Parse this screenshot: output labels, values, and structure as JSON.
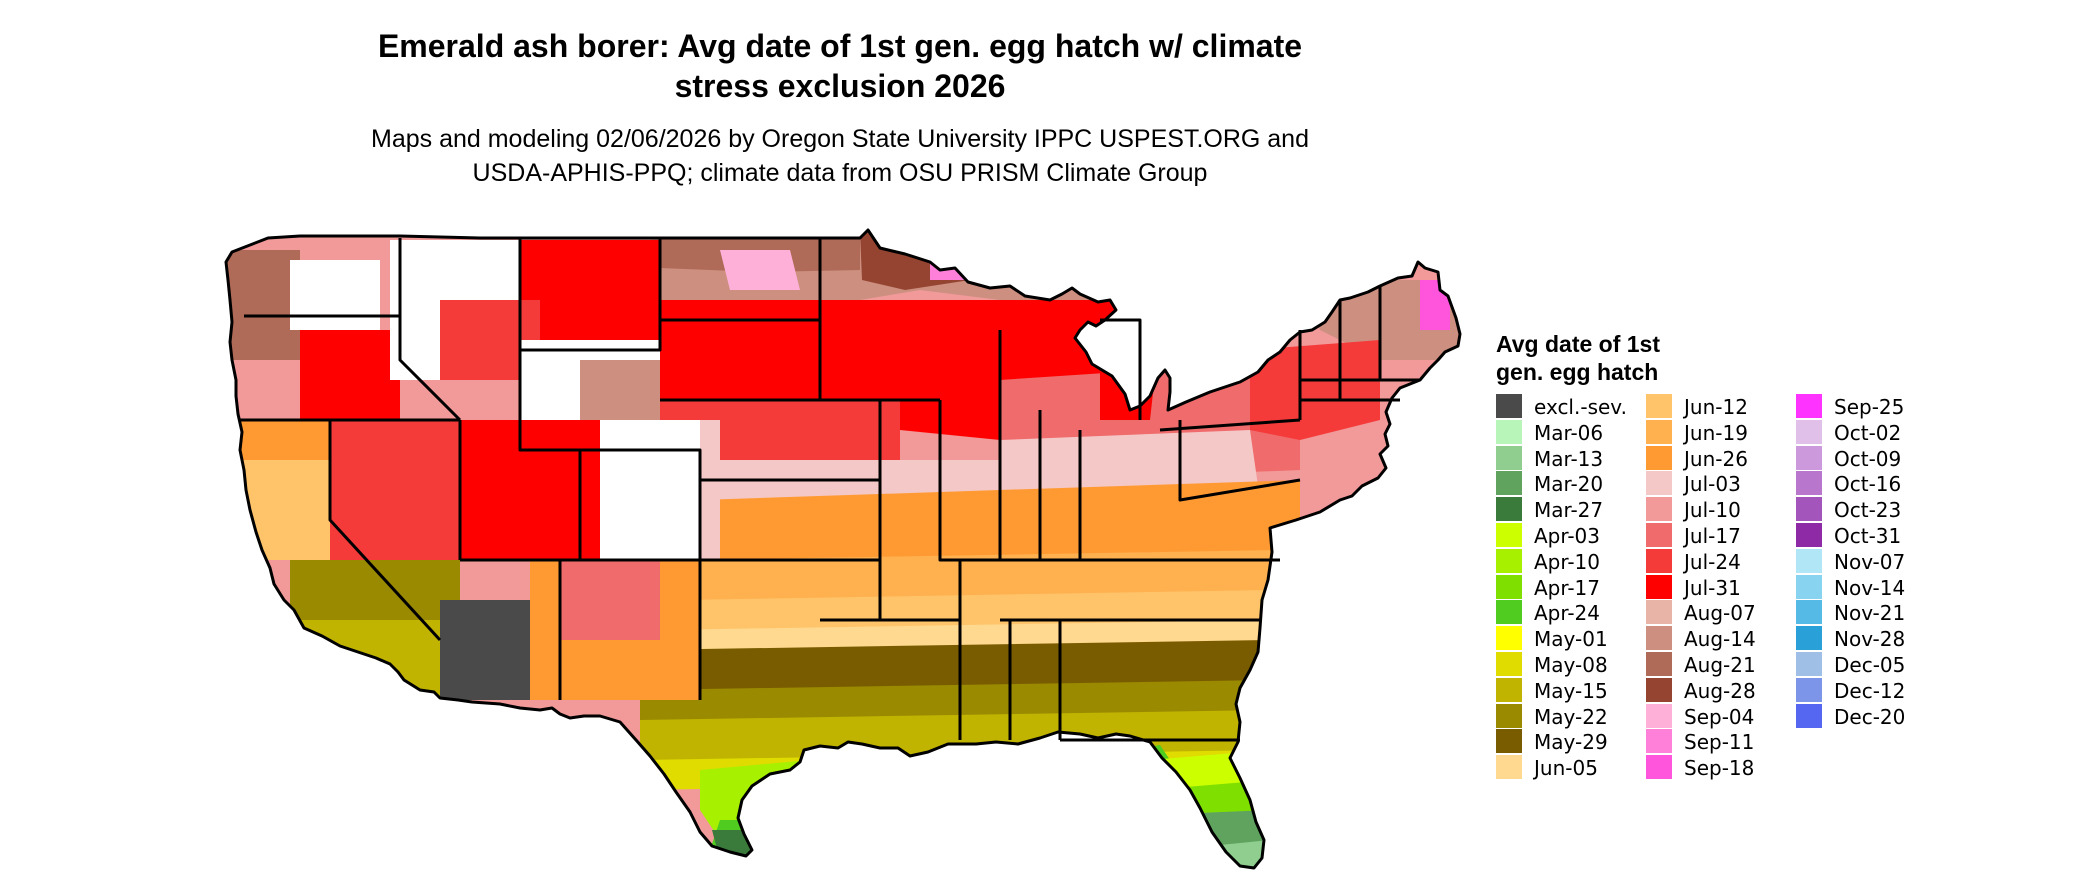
{
  "title_line1": "Emerald ash borer: Avg date of 1st gen. egg hatch w/ climate",
  "title_line2": "stress exclusion 2026",
  "subtitle_line1": "Maps and modeling 02/06/2026 by Oregon State University IPPC USPEST.ORG and",
  "subtitle_line2": "USDA-APHIS-PPQ; climate data from OSU PRISM Climate Group",
  "legend": {
    "title_line1": "Avg date of 1st",
    "title_line2": "gen. egg hatch",
    "items": [
      {
        "label": "excl.-sev.",
        "color": "#4a4a4a"
      },
      {
        "label": "Mar-06",
        "color": "#b8f5b8"
      },
      {
        "label": "Mar-13",
        "color": "#8fce8f"
      },
      {
        "label": "Mar-20",
        "color": "#5fa35f"
      },
      {
        "label": "Mar-27",
        "color": "#3a7a3a"
      },
      {
        "label": "Apr-03",
        "color": "#ccff00"
      },
      {
        "label": "Apr-10",
        "color": "#a6f000"
      },
      {
        "label": "Apr-17",
        "color": "#7fe000"
      },
      {
        "label": "Apr-24",
        "color": "#4fcc1f"
      },
      {
        "label": "May-01",
        "color": "#ffff00"
      },
      {
        "label": "May-08",
        "color": "#e0dc00"
      },
      {
        "label": "May-15",
        "color": "#c0b400"
      },
      {
        "label": "May-22",
        "color": "#9a8a00"
      },
      {
        "label": "May-29",
        "color": "#7a5c00"
      },
      {
        "label": "Jun-05",
        "color": "#ffd98f"
      },
      {
        "label": "Jun-12",
        "color": "#ffc46a"
      },
      {
        "label": "Jun-19",
        "color": "#ffb04f"
      },
      {
        "label": "Jun-26",
        "color": "#ff9a33"
      },
      {
        "label": "Jul-03",
        "color": "#f5c8c8"
      },
      {
        "label": "Jul-10",
        "color": "#f29999"
      },
      {
        "label": "Jul-17",
        "color": "#f06b6b"
      },
      {
        "label": "Jul-24",
        "color": "#f53a3a"
      },
      {
        "label": "Jul-31",
        "color": "#ff0000"
      },
      {
        "label": "Aug-07",
        "color": "#e8b4a8"
      },
      {
        "label": "Aug-14",
        "color": "#cc8f80"
      },
      {
        "label": "Aug-21",
        "color": "#b06a58"
      },
      {
        "label": "Aug-28",
        "color": "#944430"
      },
      {
        "label": "Sep-04",
        "color": "#ffb0d8"
      },
      {
        "label": "Sep-11",
        "color": "#ff80d8"
      },
      {
        "label": "Sep-18",
        "color": "#ff55dd"
      },
      {
        "label": "Sep-25",
        "color": "#ff33ff"
      },
      {
        "label": "Oct-02",
        "color": "#e0c0e8"
      },
      {
        "label": "Oct-09",
        "color": "#cc99dd"
      },
      {
        "label": "Oct-16",
        "color": "#b877cc"
      },
      {
        "label": "Oct-23",
        "color": "#a355bb"
      },
      {
        "label": "Oct-31",
        "color": "#8e2aa6"
      },
      {
        "label": "Nov-07",
        "color": "#b0e6f5"
      },
      {
        "label": "Nov-14",
        "color": "#88d4f0"
      },
      {
        "label": "Nov-21",
        "color": "#55bbe6"
      },
      {
        "label": "Nov-28",
        "color": "#2aa0d8"
      },
      {
        "label": "Dec-05",
        "color": "#a0bfe6"
      },
      {
        "label": "Dec-12",
        "color": "#7d95e8"
      },
      {
        "label": "Dec-20",
        "color": "#5566f0"
      }
    ]
  },
  "map_colors": {
    "state_border": "#000000",
    "excluded_white": "#ffffff"
  }
}
